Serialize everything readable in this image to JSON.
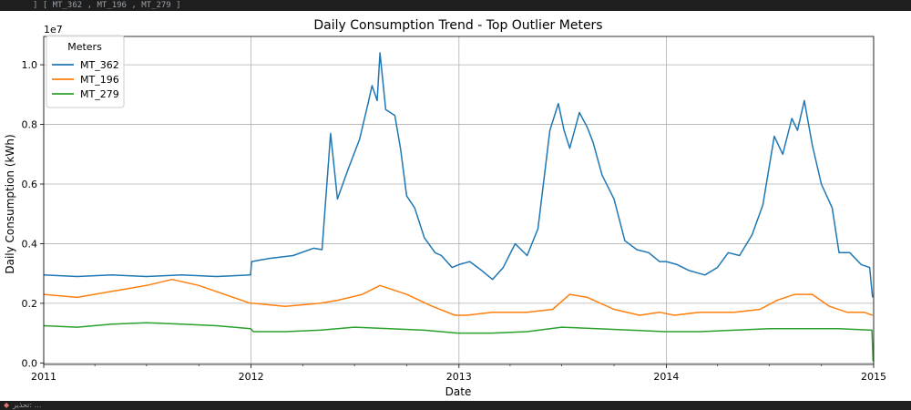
{
  "header_code": "] [ MT_362 , MT_196 , MT_279 ]",
  "footer_text": "تحذير: ...",
  "chart_data": {
    "type": "line",
    "title": "Daily Consumption Trend - Top Outlier Meters",
    "xlabel": "Date",
    "ylabel": "Daily Consumption (kWh)",
    "y_offset_text": "1e7",
    "xlim": [
      "2011-01-01",
      "2015-01-01"
    ],
    "ylim": [
      -50000,
      10950000
    ],
    "y_ticks": [
      0,
      2000000,
      4000000,
      6000000,
      8000000,
      10000000
    ],
    "y_tick_labels": [
      "0.0",
      "0.2",
      "0.4",
      "0.6",
      "0.8",
      "1.0"
    ],
    "x_ticks": [
      "2011-01-01",
      "2012-01-01",
      "2013-01-01",
      "2014-01-01",
      "2015-01-01"
    ],
    "x_tick_labels": [
      "2011",
      "2012",
      "2013",
      "2014",
      "2015"
    ],
    "grid": true,
    "legend": {
      "title": "Meters",
      "position": "top-left"
    },
    "series": [
      {
        "name": "MT_362",
        "color": "#1f77b4",
        "x": [
          "2011-01-01",
          "2011-03-01",
          "2011-05-01",
          "2011-07-01",
          "2011-09-01",
          "2011-11-01",
          "2011-12-31",
          "2012-01-02",
          "2012-02-01",
          "2012-03-15",
          "2012-04-20",
          "2012-05-05",
          "2012-05-20",
          "2012-06-01",
          "2012-06-20",
          "2012-07-10",
          "2012-07-25",
          "2012-08-01",
          "2012-08-10",
          "2012-08-15",
          "2012-08-25",
          "2012-09-10",
          "2012-09-20",
          "2012-10-01",
          "2012-10-15",
          "2012-11-01",
          "2012-11-20",
          "2012-12-01",
          "2012-12-20",
          "2013-01-01",
          "2013-01-20",
          "2013-02-10",
          "2013-03-01",
          "2013-03-20",
          "2013-04-10",
          "2013-05-01",
          "2013-05-20",
          "2013-06-10",
          "2013-06-25",
          "2013-07-05",
          "2013-07-15",
          "2013-08-01",
          "2013-08-15",
          "2013-08-25",
          "2013-09-10",
          "2013-10-01",
          "2013-10-20",
          "2013-11-10",
          "2013-12-01",
          "2013-12-20",
          "2014-01-01",
          "2014-01-20",
          "2014-02-10",
          "2014-03-10",
          "2014-04-01",
          "2014-04-20",
          "2014-05-10",
          "2014-06-01",
          "2014-06-20",
          "2014-07-10",
          "2014-07-25",
          "2014-08-10",
          "2014-08-20",
          "2014-09-01",
          "2014-09-15",
          "2014-10-01",
          "2014-10-20",
          "2014-11-01",
          "2014-11-20",
          "2014-12-10",
          "2014-12-25",
          "2014-12-30"
        ],
        "y": [
          2950000,
          2900000,
          2950000,
          2900000,
          2950000,
          2900000,
          2950000,
          3400000,
          3500000,
          3600000,
          3850000,
          3800000,
          7700000,
          5500000,
          6500000,
          7500000,
          8700000,
          9300000,
          8800000,
          10400000,
          8500000,
          8300000,
          7200000,
          5600000,
          5200000,
          4200000,
          3700000,
          3600000,
          3200000,
          3300000,
          3400000,
          3100000,
          2800000,
          3200000,
          4000000,
          3600000,
          4500000,
          7800000,
          8700000,
          7800000,
          7200000,
          8400000,
          7900000,
          7400000,
          6300000,
          5500000,
          4100000,
          3800000,
          3700000,
          3400000,
          3400000,
          3300000,
          3100000,
          2950000,
          3200000,
          3700000,
          3600000,
          4300000,
          5300000,
          7600000,
          7000000,
          8200000,
          7800000,
          8800000,
          7300000,
          6000000,
          5200000,
          3700000,
          3700000,
          3300000,
          3200000,
          2200000
        ]
      },
      {
        "name": "MT_196",
        "color": "#ff7f0e",
        "x": [
          "2011-01-01",
          "2011-03-01",
          "2011-05-01",
          "2011-07-01",
          "2011-08-15",
          "2011-10-01",
          "2011-11-15",
          "2011-12-31",
          "2012-01-05",
          "2012-03-01",
          "2012-05-01",
          "2012-06-01",
          "2012-07-15",
          "2012-08-15",
          "2012-10-01",
          "2012-11-15",
          "2012-12-25",
          "2013-01-15",
          "2013-03-01",
          "2013-05-01",
          "2013-06-15",
          "2013-07-15",
          "2013-08-15",
          "2013-10-01",
          "2013-11-15",
          "2013-12-20",
          "2014-01-15",
          "2014-03-01",
          "2014-05-01",
          "2014-06-15",
          "2014-07-15",
          "2014-08-15",
          "2014-09-15",
          "2014-10-15",
          "2014-11-15",
          "2014-12-15",
          "2014-12-30"
        ],
        "y": [
          2300000,
          2200000,
          2400000,
          2600000,
          2800000,
          2600000,
          2300000,
          2000000,
          2000000,
          1900000,
          2000000,
          2100000,
          2300000,
          2600000,
          2300000,
          1900000,
          1600000,
          1600000,
          1700000,
          1700000,
          1800000,
          2300000,
          2200000,
          1800000,
          1600000,
          1700000,
          1600000,
          1700000,
          1700000,
          1800000,
          2100000,
          2300000,
          2300000,
          1900000,
          1700000,
          1700000,
          1600000
        ]
      },
      {
        "name": "MT_279",
        "color": "#2ca02c",
        "x": [
          "2011-01-01",
          "2011-03-01",
          "2011-05-01",
          "2011-07-01",
          "2011-09-01",
          "2011-11-01",
          "2011-12-31",
          "2012-01-05",
          "2012-03-01",
          "2012-05-01",
          "2012-07-01",
          "2012-09-01",
          "2012-11-01",
          "2012-12-30",
          "2013-01-05",
          "2013-03-01",
          "2013-05-01",
          "2013-07-01",
          "2013-09-01",
          "2013-11-01",
          "2013-12-30",
          "2014-01-05",
          "2014-03-01",
          "2014-05-01",
          "2014-07-01",
          "2014-09-01",
          "2014-11-01",
          "2014-12-29",
          "2014-12-31"
        ],
        "y": [
          1250000,
          1200000,
          1300000,
          1350000,
          1300000,
          1250000,
          1150000,
          1050000,
          1050000,
          1100000,
          1200000,
          1150000,
          1100000,
          1000000,
          1000000,
          1000000,
          1050000,
          1200000,
          1150000,
          1100000,
          1050000,
          1050000,
          1050000,
          1100000,
          1150000,
          1150000,
          1150000,
          1100000,
          50000
        ]
      }
    ]
  }
}
